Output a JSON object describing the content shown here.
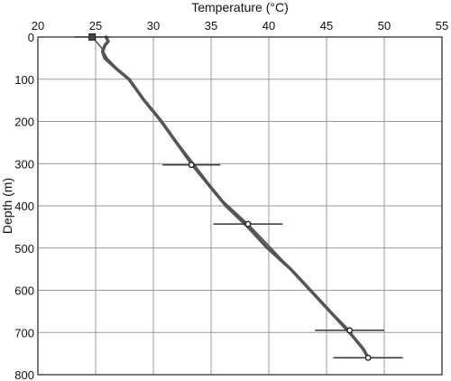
{
  "chart_data": {
    "type": "line",
    "title": "",
    "xlabel": "Temperature (°C)",
    "ylabel": "Depth (m)",
    "xlim": [
      20,
      55
    ],
    "ylim": [
      0,
      800
    ],
    "y_inverted": true,
    "x_axis_position": "top",
    "grid": true,
    "x_ticks": [
      20,
      25,
      30,
      35,
      40,
      45,
      50,
      55
    ],
    "y_ticks": [
      0,
      100,
      200,
      300,
      400,
      500,
      600,
      700,
      800
    ],
    "colors": {
      "grid": "#999999",
      "series": "#555555",
      "points": "#333333"
    },
    "series": [
      {
        "style": "thick",
        "points": [
          {
            "temp": 25.9,
            "depth": 0
          },
          {
            "temp": 26.1,
            "depth": 10
          },
          {
            "temp": 25.8,
            "depth": 20
          },
          {
            "temp": 25.6,
            "depth": 35
          },
          {
            "temp": 25.8,
            "depth": 50
          },
          {
            "temp": 26.8,
            "depth": 75
          },
          {
            "temp": 27.9,
            "depth": 100
          },
          {
            "temp": 29.2,
            "depth": 150
          },
          {
            "temp": 30.7,
            "depth": 200
          },
          {
            "temp": 32.0,
            "depth": 250
          },
          {
            "temp": 33.4,
            "depth": 300
          },
          {
            "temp": 34.8,
            "depth": 350
          },
          {
            "temp": 36.3,
            "depth": 400
          },
          {
            "temp": 38.2,
            "depth": 450
          },
          {
            "temp": 39.9,
            "depth": 500
          },
          {
            "temp": 41.9,
            "depth": 550
          },
          {
            "temp": 43.6,
            "depth": 600
          },
          {
            "temp": 45.3,
            "depth": 650
          },
          {
            "temp": 47.0,
            "depth": 700
          },
          {
            "temp": 48.2,
            "depth": 740
          },
          {
            "temp": 48.6,
            "depth": 760
          }
        ]
      },
      {
        "style": "thin",
        "points": [
          {
            "temp": 24.7,
            "depth": 0
          },
          {
            "temp": 25.5,
            "depth": 25
          },
          {
            "temp": 26.0,
            "depth": 50
          },
          {
            "temp": 27.8,
            "depth": 100
          },
          {
            "temp": 29.8,
            "depth": 170
          },
          {
            "temp": 31.4,
            "depth": 230
          },
          {
            "temp": 33.3,
            "depth": 303
          },
          {
            "temp": 35.3,
            "depth": 370
          },
          {
            "temp": 38.2,
            "depth": 443
          },
          {
            "temp": 40.2,
            "depth": 500
          },
          {
            "temp": 42.6,
            "depth": 570
          },
          {
            "temp": 45.0,
            "depth": 640
          },
          {
            "temp": 47.0,
            "depth": 695
          },
          {
            "temp": 48.6,
            "depth": 760
          }
        ]
      }
    ],
    "measurements": [
      {
        "temp": 24.7,
        "depth": 0,
        "xerr": 1.5,
        "marker": "square"
      },
      {
        "temp": 33.3,
        "depth": 303,
        "xerr": 2.5,
        "marker": "circle"
      },
      {
        "temp": 38.2,
        "depth": 443,
        "xerr": 3.0,
        "marker": "circle"
      },
      {
        "temp": 47.0,
        "depth": 695,
        "xerr": 3.0,
        "marker": "circle"
      },
      {
        "temp": 48.6,
        "depth": 760,
        "xerr": 3.0,
        "marker": "circle"
      }
    ]
  }
}
